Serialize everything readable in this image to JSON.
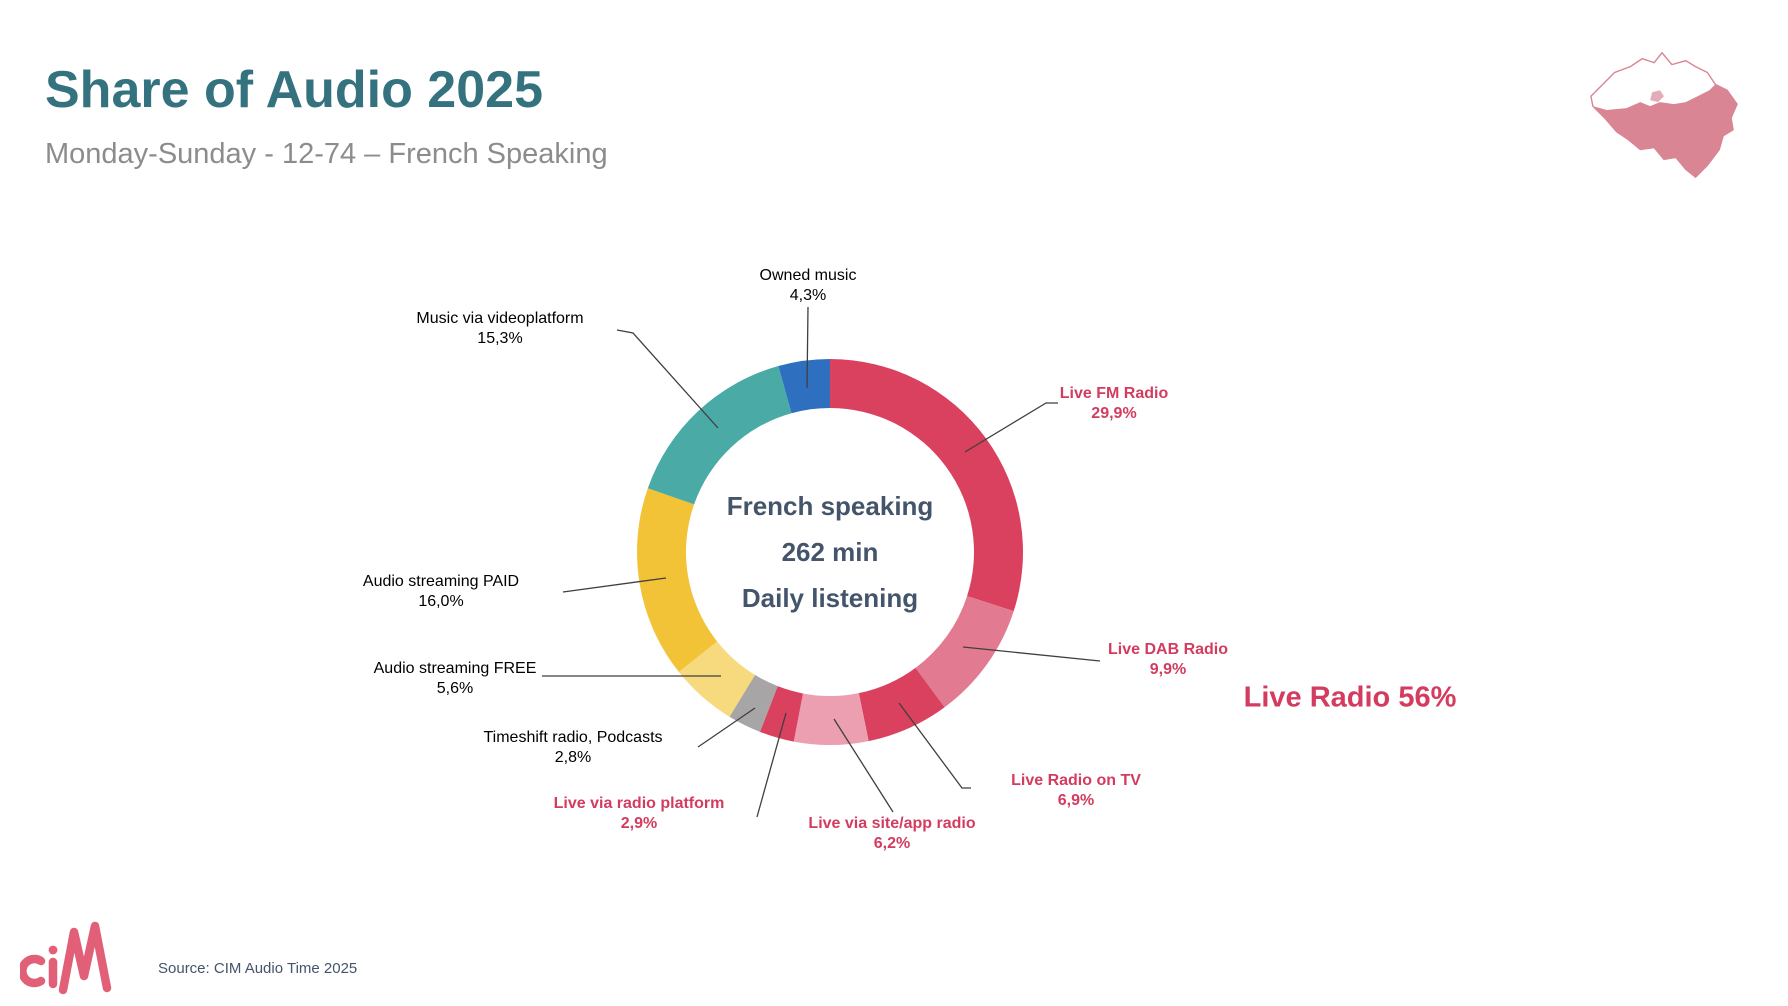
{
  "header": {
    "title": "Share of Audio 2025",
    "subtitle": "Monday-Sunday - 12-74 – French Speaking"
  },
  "chart_data": {
    "type": "pie",
    "subtype": "donut",
    "title": "Share of Audio 2025",
    "units": "%",
    "center_label": {
      "line1": "French speaking",
      "line2": "262 min",
      "line3": "Daily listening"
    },
    "segments": [
      {
        "label": "Live FM Radio",
        "value": 29.9,
        "display": "29,9%",
        "color": "#D9415F",
        "label_style": "pink"
      },
      {
        "label": "Live DAB Radio",
        "value": 9.9,
        "display": "9,9%",
        "color": "#E27B92",
        "label_style": "pink"
      },
      {
        "label": "Live Radio on TV",
        "value": 6.9,
        "display": "6,9%",
        "color": "#D9415F",
        "label_style": "pink"
      },
      {
        "label": "Live via site/app radio",
        "value": 6.2,
        "display": "6,2%",
        "color": "#EC9FB0",
        "label_style": "pink"
      },
      {
        "label": "Live via radio platform",
        "value": 2.9,
        "display": "2,9%",
        "color": "#D9415F",
        "label_style": "pink"
      },
      {
        "label": "Timeshift radio, Podcasts",
        "value": 2.8,
        "display": "2,8%",
        "color": "#A7A5A5",
        "label_style": "black"
      },
      {
        "label": "Audio streaming FREE",
        "value": 5.6,
        "display": "5,6%",
        "color": "#F7D97E",
        "label_style": "black"
      },
      {
        "label": "Audio streaming PAID",
        "value": 16.0,
        "display": "16,0%",
        "color": "#F2C237",
        "label_style": "black"
      },
      {
        "label": "Music via videoplatform",
        "value": 15.3,
        "display": "15,3%",
        "color": "#4AAAA5",
        "label_style": "black"
      },
      {
        "label": "Owned music",
        "value": 4.3,
        "display": "4,3%",
        "color": "#2F6FC0",
        "label_style": "black"
      }
    ],
    "annotation": "Live Radio 56%",
    "legend_position": "none",
    "start_angle_deg": -90,
    "direction": "clockwise"
  },
  "footer": {
    "logo_text": "ciM",
    "source": "Source: CIM Audio Time 2025"
  },
  "colors": {
    "accent_crimson": "#D33C5F",
    "title_teal": "#35727F",
    "subtitle_gray": "#8C8C8C",
    "center_text": "#44546A",
    "map_wallonia_fill": "#D98593",
    "map_brussels_fill": "#E2ACB8",
    "logo_pink": "#E25F78"
  }
}
